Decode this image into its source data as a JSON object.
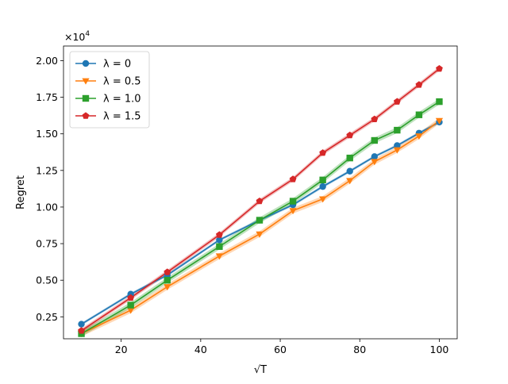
{
  "chart_data": {
    "type": "line",
    "xlabel": "√T",
    "ylabel": "Regret",
    "y_multiplier": "×10",
    "y_multiplier_exp": "4",
    "xlim": [
      5.5,
      104.5
    ],
    "ylim": [
      0.1,
      2.1
    ],
    "xticks": [
      20,
      40,
      60,
      80,
      100
    ],
    "yticks": [
      0.25,
      0.5,
      0.75,
      1.0,
      1.25,
      1.5,
      1.75,
      2.0
    ],
    "ytick_labels": [
      "0.25",
      "0.50",
      "0.75",
      "1.00",
      "1.25",
      "1.50",
      "1.75",
      "2.00"
    ],
    "grid": false,
    "legend_position": "top-left",
    "x": [
      10,
      22.4,
      31.6,
      44.7,
      54.8,
      63.2,
      70.7,
      77.5,
      83.7,
      89.4,
      94.9,
      100
    ],
    "series": [
      {
        "name": "λ = 0",
        "color": "#1f77b4",
        "marker": "circle",
        "values": [
          0.2,
          0.405,
          0.535,
          0.775,
          0.91,
          1.015,
          1.14,
          1.245,
          1.345,
          1.42,
          1.505,
          1.58
        ],
        "band": 0.01
      },
      {
        "name": "λ = 0.5",
        "color": "#ff7f0e",
        "marker": "triangle-down",
        "values": [
          0.135,
          0.295,
          0.455,
          0.665,
          0.815,
          0.975,
          1.055,
          1.18,
          1.31,
          1.39,
          1.485,
          1.59
        ],
        "band": 0.02
      },
      {
        "name": "λ = 1.0",
        "color": "#2ca02c",
        "marker": "square",
        "values": [
          0.135,
          0.33,
          0.5,
          0.73,
          0.91,
          1.04,
          1.185,
          1.335,
          1.455,
          1.525,
          1.63,
          1.72
        ],
        "band": 0.02
      },
      {
        "name": "λ = 1.5",
        "color": "#d62728",
        "marker": "pentagon",
        "values": [
          0.155,
          0.38,
          0.555,
          0.81,
          1.04,
          1.19,
          1.37,
          1.49,
          1.6,
          1.72,
          1.835,
          1.945
        ],
        "band": 0.015
      }
    ]
  }
}
